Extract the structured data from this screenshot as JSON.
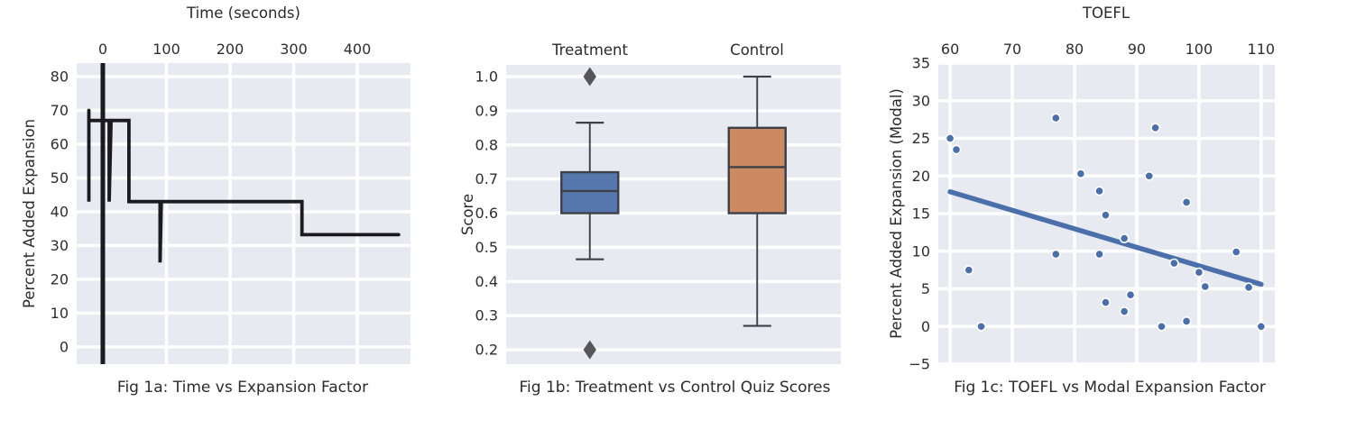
{
  "figure": {
    "background": "#ffffff",
    "plot_bg": "#e8eaf1",
    "grid_color": "#ffffff",
    "text_color": "#2b2b2b"
  },
  "chart_data": [
    {
      "id": "fig1a",
      "type": "line",
      "title": "Fig 1a: Time vs Expansion Factor",
      "xlabel": "Time (seconds)",
      "xlabel_position": "top",
      "ylabel": "Percent Added Expansion",
      "xlim": [
        -41.1,
        483.7
      ],
      "ylim": [
        -5.1,
        84
      ],
      "xticks": [
        0,
        100,
        200,
        300,
        400
      ],
      "yticks": [
        0,
        10,
        20,
        30,
        40,
        50,
        60,
        70,
        80
      ],
      "grid": true,
      "line_color": "#1b1b1f",
      "axvline_x": 0,
      "points": [
        [
          -22,
          70
        ],
        [
          -22,
          43
        ],
        [
          -22,
          67
        ],
        [
          10,
          67
        ],
        [
          10,
          43
        ],
        [
          13,
          67
        ],
        [
          41,
          67
        ],
        [
          41,
          43
        ],
        [
          90,
          43
        ],
        [
          90,
          25
        ],
        [
          92,
          43
        ],
        [
          313,
          43
        ],
        [
          313,
          33.2
        ],
        [
          465,
          33.2
        ]
      ]
    },
    {
      "id": "fig1b",
      "type": "boxplot",
      "title": "Fig 1b: Treatment vs Control Quiz Scores",
      "ylabel": "Score",
      "category_position": "top",
      "ylim": [
        0.158,
        1.0343
      ],
      "yticks": [
        0.2,
        0.3,
        0.4,
        0.5,
        0.6,
        0.7,
        0.8,
        0.9,
        1.0
      ],
      "ytick_labels": [
        "0.2",
        "0.3",
        "0.4",
        "0.5",
        "0.6",
        "0.7",
        "0.8",
        "0.9",
        "1.0"
      ],
      "grid": true,
      "edge_color": "#3d4049",
      "outlier_color": "#55555a",
      "boxes": [
        {
          "label": "Treatment",
          "color": "#5577ae",
          "whisker_low": 0.465,
          "q1": 0.6,
          "median": 0.665,
          "q3": 0.72,
          "whisker_high": 0.865,
          "outliers": [
            1.0,
            0.2
          ]
        },
        {
          "label": "Control",
          "color": "#cc8a63",
          "whisker_low": 0.27,
          "q1": 0.6,
          "median": 0.735,
          "q3": 0.85,
          "whisker_high": 1.0,
          "outliers": []
        }
      ]
    },
    {
      "id": "fig1c",
      "type": "scatter",
      "title": "Fig 1c: TOEFL vs Modal Expansion Factor",
      "xlabel": "TOEFL",
      "xlabel_position": "top",
      "ylabel": "Percent Added Expansion (Modal)",
      "xlim": [
        58.1,
        112.2
      ],
      "ylim": [
        -5,
        35
      ],
      "xticks": [
        60,
        70,
        80,
        90,
        100,
        110
      ],
      "yticks": [
        -5,
        0,
        5,
        10,
        15,
        20,
        25,
        30,
        35
      ],
      "ytick_labels": [
        "−5",
        "0",
        "5",
        "10",
        "15",
        "20",
        "25",
        "30",
        "35"
      ],
      "grid": true,
      "point_color": "#4a6fab",
      "points": [
        [
          60,
          25
        ],
        [
          61,
          23.5
        ],
        [
          63,
          7.5
        ],
        [
          65,
          0
        ],
        [
          77,
          27.7
        ],
        [
          77,
          9.6
        ],
        [
          81,
          20.3
        ],
        [
          84,
          18
        ],
        [
          84,
          9.6
        ],
        [
          85,
          14.8
        ],
        [
          85,
          3.2
        ],
        [
          88,
          11.7
        ],
        [
          88,
          2
        ],
        [
          89,
          4.2
        ],
        [
          92,
          20
        ],
        [
          93,
          26.4
        ],
        [
          94,
          0
        ],
        [
          96,
          8.4
        ],
        [
          98,
          16.5
        ],
        [
          98,
          0.7
        ],
        [
          100,
          7.2
        ],
        [
          101,
          5.3
        ],
        [
          106,
          9.9
        ],
        [
          108,
          5.2
        ],
        [
          110,
          0
        ]
      ],
      "regression": {
        "x1": 60,
        "y1": 17.9,
        "x2": 110,
        "y2": 5.6,
        "color": "#4a6fab"
      }
    }
  ]
}
